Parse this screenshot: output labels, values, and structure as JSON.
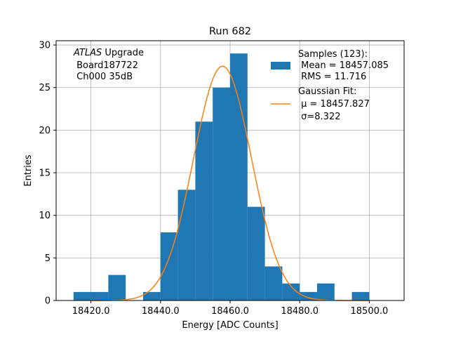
{
  "chart_data": {
    "type": "bar",
    "title": "Run 682",
    "xlabel": "Energy [ADC Counts]",
    "ylabel": "Entries",
    "xlim": [
      18410,
      18510
    ],
    "ylim": [
      0,
      30.5
    ],
    "grid": true,
    "legend_position": "top-right",
    "x_ticks": [
      18420.0,
      18440.0,
      18460.0,
      18480.0,
      18500.0
    ],
    "x_tick_labels": [
      "18420.0",
      "18440.0",
      "18460.0",
      "18480.0",
      "18500.0"
    ],
    "y_ticks": [
      0,
      5,
      10,
      15,
      20,
      25,
      30
    ],
    "y_tick_labels": [
      "0",
      "5",
      "10",
      "15",
      "20",
      "25",
      "30"
    ],
    "histogram": {
      "name": "Samples (123):",
      "detail_lines": [
        " Mean = 18457.085",
        " RMS = 11.716"
      ],
      "color": "#1f77b4",
      "bin_edges": [
        18415,
        18420,
        18425,
        18430,
        18435,
        18440,
        18445,
        18450,
        18455,
        18460,
        18465,
        18470,
        18475,
        18480,
        18485,
        18490,
        18495,
        18500
      ],
      "counts": [
        1,
        1,
        3,
        0,
        1,
        8,
        13,
        21,
        25,
        29,
        11,
        4,
        2,
        1,
        2,
        0,
        1
      ]
    },
    "fit": {
      "name": "Gaussian Fit:",
      "detail_lines": [
        " μ = 18457.827",
        " σ=8.322"
      ],
      "color": "#ff7f0e",
      "type": "gaussian",
      "mu": 18457.827,
      "sigma": 8.322,
      "amplitude": 27.5
    },
    "annotations": [
      {
        "italic_prefix": "ATLAS",
        "text": " Upgrade"
      },
      {
        "italic_prefix": "",
        "text": " Board187722"
      },
      {
        "italic_prefix": "",
        "text": " Ch000 35dB"
      }
    ]
  }
}
